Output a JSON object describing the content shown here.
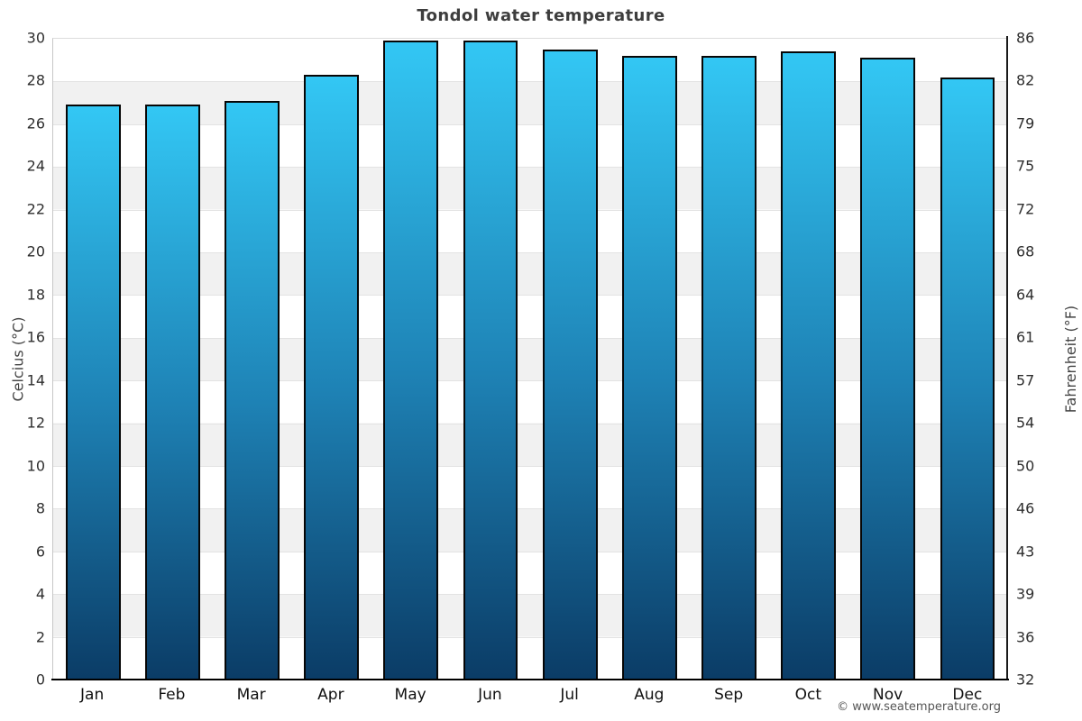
{
  "footer": {
    "copyright": "© www.seatemperature.org"
  },
  "chart_data": {
    "type": "bar",
    "title": "Tondol water temperature",
    "categories": [
      "Jan",
      "Feb",
      "Mar",
      "Apr",
      "May",
      "Jun",
      "Jul",
      "Aug",
      "Sep",
      "Oct",
      "Nov",
      "Dec"
    ],
    "values": [
      26.9,
      26.9,
      27.1,
      28.3,
      29.9,
      29.9,
      29.5,
      29.2,
      29.2,
      29.4,
      29.1,
      28.2
    ],
    "unit": "°C",
    "ylabel_left": "Celcius (°C)",
    "ylabel_right": "Fahrenheit (°F)",
    "ylim": [
      0,
      30
    ],
    "tick_step_celsius": 2,
    "left_ticks": [
      30,
      28,
      26,
      24,
      22,
      20,
      18,
      16,
      14,
      12,
      10,
      8,
      6,
      4,
      2,
      0
    ],
    "right_ticks": [
      86,
      82,
      79,
      75,
      72,
      68,
      64,
      61,
      57,
      54,
      50,
      46,
      43,
      39,
      36,
      32
    ],
    "grid": "alternating horizontal bands, band per 2°C",
    "legend": "none",
    "colors": {
      "bar_gradient_top": "#33c7f4",
      "bar_gradient_mid": "#1e82b5",
      "bar_gradient_bottom": "#0b3c66",
      "bar_border": "#060606",
      "band_gray": "#f1f1f1",
      "band_white": "#ffffff",
      "title_text": "#3d3d3d",
      "tick_text": "#2e2e2e"
    }
  }
}
